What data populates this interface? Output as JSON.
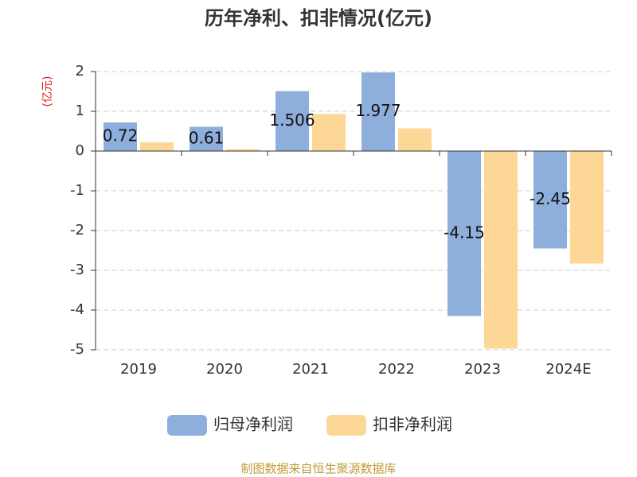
{
  "chart_data": {
    "type": "bar",
    "title": "历年净利、扣非情况(亿元)",
    "y_label": "(亿元)",
    "categories": [
      "2019",
      "2020",
      "2021",
      "2022",
      "2023",
      "2024E"
    ],
    "series": [
      {
        "name": "归母净利润",
        "color": "#8eaedb",
        "values": [
          0.72,
          0.61,
          1.506,
          1.977,
          -4.15,
          -2.45
        ]
      },
      {
        "name": "扣非净利润",
        "color": "#fdd796",
        "values": [
          0.22,
          0.05,
          0.93,
          0.57,
          -4.97,
          -2.83
        ]
      }
    ],
    "ylim": [
      -5,
      2
    ],
    "yticks": [
      -5,
      -4,
      -3,
      -2,
      -1,
      0,
      1,
      2
    ],
    "grid": true,
    "legend": "bottom",
    "source": "制图数据来自恒生聚源数据库"
  }
}
